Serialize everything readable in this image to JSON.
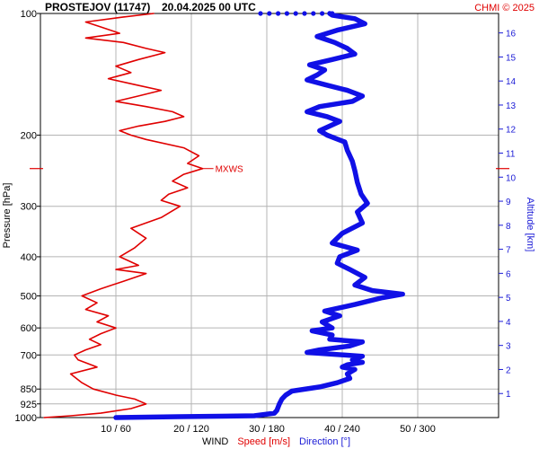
{
  "header": {
    "station": "PROSTEJOV (11747)",
    "datetime": "20.04.2025 00 UTC",
    "credit": "CHMI © 2025"
  },
  "chart_data": {
    "type": "line",
    "title": "PROSTEJOV (11747)    20.04.2025 00 UTC",
    "ylabel": "Pressure [hPa]",
    "ylabel_right": "Altitude [km]",
    "xlabel": {
      "prefix": "WIND",
      "speed": "Speed [m/s]",
      "direction": "Direction [°]"
    },
    "y_scale": "log",
    "ylim": [
      1000,
      100
    ],
    "y_ticks": [
      100,
      200,
      300,
      400,
      500,
      600,
      700,
      850,
      925,
      1000
    ],
    "x_speed_range": [
      0,
      50
    ],
    "x_direction_range": [
      0,
      300
    ],
    "x_ticks": [
      {
        "speed": 10,
        "dir": 60,
        "label": "10 / 60"
      },
      {
        "speed": 20,
        "dir": 120,
        "label": "20 / 120"
      },
      {
        "speed": 30,
        "dir": 180,
        "label": "30 / 180"
      },
      {
        "speed": 40,
        "dir": 240,
        "label": "40 / 240"
      },
      {
        "speed": 50,
        "dir": 300,
        "label": "50 / 300"
      }
    ],
    "altitude_ticks_km": [
      1,
      2,
      3,
      4,
      5,
      6,
      7,
      8,
      9,
      10,
      11,
      12,
      13,
      14,
      15,
      16
    ],
    "grid": true,
    "annotation": {
      "text": "MXWS",
      "pressure": 242
    },
    "series": [
      {
        "name": "Speed [m/s]",
        "color": "#e00000",
        "axis": "speed",
        "points": [
          [
            1000,
            0.5
          ],
          [
            990,
            4
          ],
          [
            975,
            8
          ],
          [
            950,
            12
          ],
          [
            925,
            14
          ],
          [
            900,
            12.5
          ],
          [
            880,
            10
          ],
          [
            850,
            7
          ],
          [
            820,
            5.5
          ],
          [
            780,
            4
          ],
          [
            750,
            7.5
          ],
          [
            720,
            5
          ],
          [
            700,
            4.5
          ],
          [
            680,
            6
          ],
          [
            660,
            8
          ],
          [
            640,
            6.5
          ],
          [
            620,
            8
          ],
          [
            600,
            10
          ],
          [
            580,
            7.5
          ],
          [
            560,
            9
          ],
          [
            540,
            6
          ],
          [
            520,
            7.5
          ],
          [
            500,
            5.5
          ],
          [
            480,
            8
          ],
          [
            460,
            11
          ],
          [
            440,
            14
          ],
          [
            430,
            10
          ],
          [
            420,
            13
          ],
          [
            400,
            10.5
          ],
          [
            380,
            12.5
          ],
          [
            360,
            14
          ],
          [
            340,
            12
          ],
          [
            320,
            16
          ],
          [
            300,
            18.5
          ],
          [
            290,
            16
          ],
          [
            280,
            17
          ],
          [
            270,
            19.5
          ],
          [
            260,
            17.5
          ],
          [
            250,
            19
          ],
          [
            242,
            21.5
          ],
          [
            235,
            19.5
          ],
          [
            225,
            21
          ],
          [
            215,
            19
          ],
          [
            205,
            14
          ],
          [
            200,
            12
          ],
          [
            195,
            10.5
          ],
          [
            190,
            13
          ],
          [
            185,
            16.5
          ],
          [
            180,
            19
          ],
          [
            175,
            17.5
          ],
          [
            170,
            14
          ],
          [
            165,
            10
          ],
          [
            160,
            13
          ],
          [
            155,
            16
          ],
          [
            150,
            12.5
          ],
          [
            145,
            9
          ],
          [
            140,
            12
          ],
          [
            135,
            10
          ],
          [
            130,
            13
          ],
          [
            125,
            16.5
          ],
          [
            122,
            14
          ],
          [
            118,
            11
          ],
          [
            115,
            6
          ],
          [
            112,
            10.5
          ],
          [
            108,
            8
          ],
          [
            105,
            6
          ],
          [
            102,
            11
          ],
          [
            100,
            15
          ]
        ]
      },
      {
        "name": "Direction [°]",
        "color": "#1010e6",
        "axis": "direction",
        "points": [
          [
            1000,
            60
          ],
          [
            995,
            110
          ],
          [
            990,
            170
          ],
          [
            975,
            186
          ],
          [
            960,
            188
          ],
          [
            925,
            190
          ],
          [
            900,
            192
          ],
          [
            880,
            195
          ],
          [
            860,
            200
          ],
          [
            840,
            222
          ],
          [
            820,
            236
          ],
          [
            800,
            246
          ],
          [
            780,
            244
          ],
          [
            760,
            250
          ],
          [
            750,
            240
          ],
          [
            740,
            244
          ],
          [
            730,
            256
          ],
          [
            720,
            248
          ],
          [
            705,
            256
          ],
          [
            690,
            212
          ],
          [
            680,
            222
          ],
          [
            665,
            246
          ],
          [
            650,
            256
          ],
          [
            640,
            230
          ],
          [
            625,
            232
          ],
          [
            610,
            216
          ],
          [
            600,
            232
          ],
          [
            580,
            224
          ],
          [
            560,
            238
          ],
          [
            545,
            226
          ],
          [
            525,
            250
          ],
          [
            505,
            272
          ],
          [
            495,
            288
          ],
          [
            485,
            264
          ],
          [
            470,
            250
          ],
          [
            450,
            258
          ],
          [
            430,
            246
          ],
          [
            415,
            236
          ],
          [
            400,
            238
          ],
          [
            385,
            252
          ],
          [
            370,
            232
          ],
          [
            350,
            240
          ],
          [
            330,
            256
          ],
          [
            310,
            252
          ],
          [
            295,
            260
          ],
          [
            280,
            255
          ],
          [
            262,
            252
          ],
          [
            245,
            250
          ],
          [
            232,
            248
          ],
          [
            218,
            244
          ],
          [
            208,
            242
          ],
          [
            200,
            228
          ],
          [
            195,
            222
          ],
          [
            190,
            230
          ],
          [
            185,
            238
          ],
          [
            180,
            228
          ],
          [
            175,
            212
          ],
          [
            170,
            222
          ],
          [
            165,
            248
          ],
          [
            160,
            256
          ],
          [
            155,
            244
          ],
          [
            150,
            226
          ],
          [
            146,
            212
          ],
          [
            142,
            220
          ],
          [
            138,
            226
          ],
          [
            134,
            214
          ],
          [
            130,
            232
          ],
          [
            126,
            250
          ],
          [
            122,
            244
          ],
          [
            118,
            234
          ],
          [
            114,
            220
          ],
          [
            110,
            236
          ],
          [
            106,
            258
          ],
          [
            103,
            250
          ],
          [
            101,
            232
          ],
          [
            100,
            230
          ]
        ],
        "top_cap": [
          [
            100,
            175
          ],
          [
            100,
            182
          ],
          [
            100,
            189
          ],
          [
            100,
            196
          ],
          [
            100,
            203
          ],
          [
            100,
            210
          ],
          [
            100,
            217
          ],
          [
            100,
            224
          ],
          [
            100,
            232
          ]
        ]
      }
    ]
  }
}
